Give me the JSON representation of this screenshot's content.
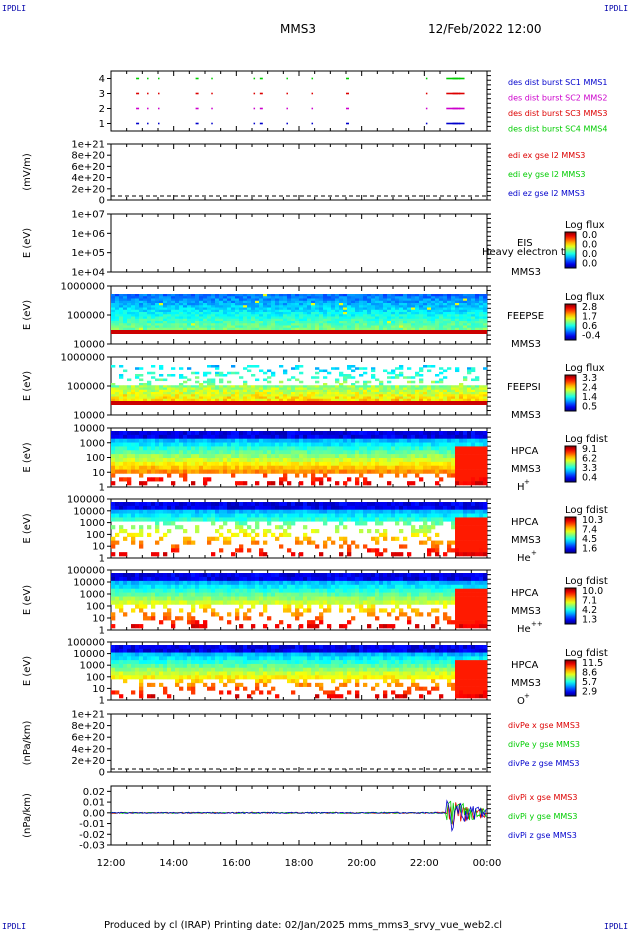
{
  "corners": {
    "tl": "IPDLI",
    "tr": "IPDLI",
    "bl": "IPDLI",
    "br": "IPDLI"
  },
  "header": {
    "spacecraft": "MMS3",
    "datetime": "12/Feb/2022 12:00"
  },
  "footer": "Produced by cl (IRAP)   Printing date: 02/Jan/2025   mms_mms3_srvy_vue_web2.cl",
  "colors": {
    "blue": "#0000cc",
    "magenta": "#cc00cc",
    "red": "#dd0000",
    "green": "#00cc00"
  },
  "chart_data": [
    {
      "type": "scatter",
      "id": "burst",
      "ylabel": "",
      "ylim": [
        0.5,
        4.5
      ],
      "yticks": [
        "1",
        "2",
        "3",
        "4"
      ],
      "legend": [
        {
          "text": "des dist burst SC1 MMS1",
          "color": "#0000cc"
        },
        {
          "text": "des dist burst SC2 MMS2",
          "color": "#cc00cc"
        },
        {
          "text": "des dist burst SC3 MMS3",
          "color": "#dd0000"
        },
        {
          "text": "des dist burst SC4 MMS4",
          "color": "#00cc00"
        }
      ],
      "series": [
        {
          "level": 4,
          "color": "#00cc00",
          "x_hours": [
            12.8,
            13.15,
            13.5,
            14.7,
            15.2,
            16.55,
            16.75,
            17.6,
            18.4,
            19.5,
            22.05,
            22.7,
            22.9,
            23.1
          ]
        },
        {
          "level": 3,
          "color": "#dd0000",
          "x_hours": [
            12.8,
            13.15,
            13.5,
            14.7,
            15.2,
            16.55,
            16.75,
            17.6,
            18.4,
            19.5,
            22.05,
            22.7,
            22.9,
            23.1
          ]
        },
        {
          "level": 2,
          "color": "#cc00cc",
          "x_hours": [
            12.8,
            13.15,
            13.5,
            14.7,
            15.2,
            16.55,
            16.75,
            17.6,
            18.4,
            19.5,
            22.05,
            22.7,
            22.9,
            23.1
          ]
        },
        {
          "level": 1,
          "color": "#0000cc",
          "x_hours": [
            12.8,
            13.15,
            13.5,
            14.7,
            15.2,
            16.55,
            16.75,
            17.6,
            18.4,
            19.5,
            22.05,
            22.7,
            22.9,
            23.1
          ]
        }
      ]
    },
    {
      "type": "line",
      "id": "edi",
      "ylabel": "(mV/m)",
      "yticks": [
        "0",
        "2e+20",
        "4e+20",
        "6e+20",
        "8e+20",
        "1e+21"
      ],
      "legend": [
        {
          "text": "edi ex gse l2 MMS3",
          "color": "#dd0000"
        },
        {
          "text": "edi ey gse l2 MMS3",
          "color": "#00cc00"
        },
        {
          "text": "edi ez gse l2 MMS3",
          "color": "#0000cc"
        }
      ]
    },
    {
      "type": "heatmap",
      "id": "eis",
      "ylabel": "E (eV)",
      "yticks": [
        "1e+04",
        "1e+05",
        "1e+06",
        "1e+07"
      ],
      "label": "EIS",
      "sublabel": "Heavy electron to",
      "sc": "MMS3",
      "cbar_title": "Log flux",
      "cbar_values": [
        "0.0",
        "0.0",
        "0.0",
        "0.0"
      ]
    },
    {
      "type": "heatmap",
      "id": "feepse",
      "ylabel": "E (eV)",
      "yticks": [
        "10000",
        "100000",
        "1000000"
      ],
      "label": "FEEPSE",
      "sc": "MMS3",
      "cbar_title": "Log flux",
      "cbar_values": [
        "2.8",
        "1.7",
        "0.6",
        "-0.4"
      ]
    },
    {
      "type": "heatmap",
      "id": "feepsi",
      "ylabel": "E (eV)",
      "yticks": [
        "10000",
        "100000",
        "1000000"
      ],
      "label": "FEEPSI",
      "sc": "MMS3",
      "cbar_title": "Log flux",
      "cbar_values": [
        "3.3",
        "2.4",
        "1.4",
        "0.5"
      ]
    },
    {
      "type": "heatmap",
      "id": "hpca_h",
      "ylabel": "E (eV)",
      "yticks": [
        "1",
        "10",
        "100",
        "1000",
        "10000"
      ],
      "label": "HPCA",
      "sc": "MMS3",
      "species": "H",
      "charge": "+",
      "cbar_title": "Log fdist",
      "cbar_values": [
        "9.1",
        "6.2",
        "3.3",
        "0.4"
      ]
    },
    {
      "type": "heatmap",
      "id": "hpca_he",
      "ylabel": "E (eV)",
      "yticks": [
        "1",
        "10",
        "100",
        "1000",
        "10000",
        "100000"
      ],
      "label": "HPCA",
      "sc": "MMS3",
      "species": "He",
      "charge": "+",
      "cbar_title": "Log fdist",
      "cbar_values": [
        "10.3",
        "7.4",
        "4.5",
        "1.6"
      ]
    },
    {
      "type": "heatmap",
      "id": "hpca_hepp",
      "ylabel": "E (eV)",
      "yticks": [
        "1",
        "10",
        "100",
        "1000",
        "10000",
        "100000"
      ],
      "label": "HPCA",
      "sc": "MMS3",
      "species": "He",
      "charge": "++",
      "cbar_title": "Log fdist",
      "cbar_values": [
        "10.0",
        "7.1",
        "4.2",
        "1.3"
      ]
    },
    {
      "type": "heatmap",
      "id": "hpca_o",
      "ylabel": "E (eV)",
      "yticks": [
        "1",
        "10",
        "100",
        "1000",
        "10000",
        "100000"
      ],
      "label": "HPCA",
      "sc": "MMS3",
      "species": "O",
      "charge": "+",
      "cbar_title": "Log fdist",
      "cbar_values": [
        "11.5",
        "8.6",
        "5.7",
        "2.9"
      ]
    },
    {
      "type": "line",
      "id": "divpe",
      "ylabel": "(nPa/km)",
      "yticks": [
        "0",
        "2e+20",
        "4e+20",
        "6e+20",
        "8e+20",
        "1e+21"
      ],
      "legend": [
        {
          "text": "divPe x gse MMS3",
          "color": "#dd0000"
        },
        {
          "text": "divPe y gse MMS3",
          "color": "#00cc00"
        },
        {
          "text": "divPe z gse MMS3",
          "color": "#0000cc"
        }
      ]
    },
    {
      "type": "line",
      "id": "divpi",
      "ylabel": "(nPa/km)",
      "yticks": [
        "-0.03",
        "-0.02",
        "-0.01",
        "0.00",
        "0.01",
        "0.02"
      ],
      "ylim": [
        -0.03,
        0.025
      ],
      "legend": [
        {
          "text": "divPi x gse MMS3",
          "color": "#dd0000"
        },
        {
          "text": "divPi y gse MMS3",
          "color": "#00cc00"
        },
        {
          "text": "divPi z gse MMS3",
          "color": "#0000cc"
        }
      ]
    }
  ],
  "xaxis": {
    "ticks": [
      "12:00",
      "14:00",
      "16:00",
      "18:00",
      "20:00",
      "22:00",
      "00:00"
    ],
    "start_hour": 12,
    "end_hour": 24
  }
}
